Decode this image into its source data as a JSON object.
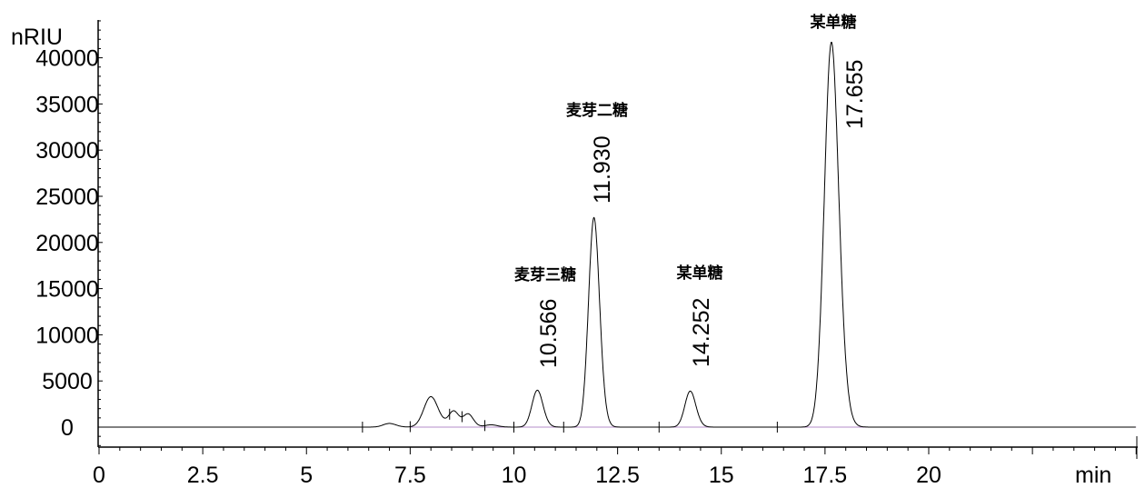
{
  "chart_data": {
    "type": "line",
    "title": "",
    "xlabel": "min",
    "ylabel": "nRIU",
    "xlim": [
      0,
      25
    ],
    "ylim": [
      -2000,
      44000
    ],
    "x_ticks": [
      "0",
      "2.5",
      "5",
      "7.5",
      "10",
      "12.5",
      "15",
      "17.5",
      "20"
    ],
    "x_tick_values": [
      0,
      2.5,
      5,
      7.5,
      10,
      12.5,
      15,
      17.5,
      20
    ],
    "y_ticks": [
      "0",
      "5000",
      "10000",
      "15000",
      "20000",
      "25000",
      "30000",
      "35000",
      "40000"
    ],
    "y_tick_values": [
      0,
      5000,
      10000,
      15000,
      20000,
      25000,
      30000,
      35000,
      40000
    ],
    "grid": false,
    "line_color": "#000000",
    "baseline_color": "#b48cc8",
    "labeled_peaks": [
      {
        "rt_label": "10.566",
        "name": "麦芽三糖",
        "rt": 10.566,
        "height": 4000
      },
      {
        "rt_label": "11.930",
        "name": "麦芽二糖",
        "rt": 11.93,
        "height": 22700
      },
      {
        "rt_label": "14.252",
        "name": "某单糖",
        "rt": 14.252,
        "height": 3900
      },
      {
        "rt_label": "17.655",
        "name": "某单糖",
        "rt": 17.655,
        "height": 41700
      }
    ],
    "minor_peaks": [
      {
        "rt": 7.0,
        "height": 400
      },
      {
        "rt": 8.0,
        "height": 3300
      },
      {
        "rt": 8.55,
        "height": 1700
      },
      {
        "rt": 8.9,
        "height": 1400
      },
      {
        "rt": 9.45,
        "height": 250
      }
    ]
  }
}
